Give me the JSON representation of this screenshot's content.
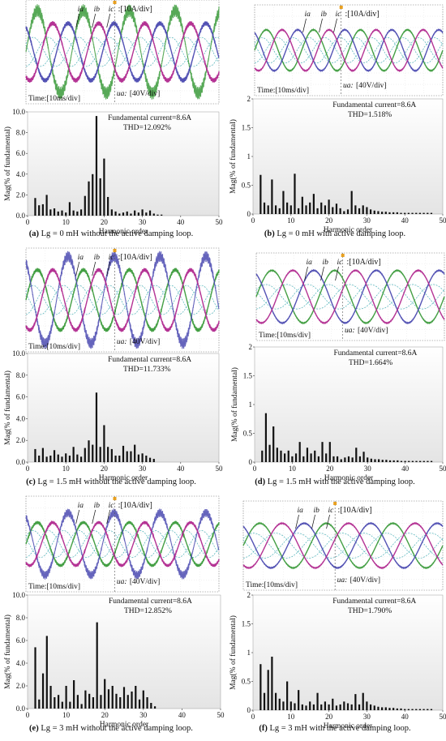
{
  "panels": [
    {
      "id": "a",
      "caption_letter": "(a)",
      "caption_text": "Lg = 0 mH without the active damping loop.",
      "wave_labels": {
        "ia": "ia",
        "ib": "ib",
        "ic": "ic",
        "current_scale": ":[10A/div]",
        "voltage_label": "ua:",
        "voltage_scale": "[40V/div]",
        "time_label": "Time:[10ms/div]"
      },
      "wave": {
        "current_amp": 0.55,
        "voltage_amp": 0.28,
        "cycles": 4.2,
        "ripple": 0.35,
        "highlight_phase": "green"
      },
      "chart_data": {
        "type": "bar",
        "ylabel": "Mag(% of fundamental)",
        "xlabel": "Harmonic order",
        "ylim": [
          0,
          10
        ],
        "yticks": [
          "0.0",
          "2.0",
          "4.0",
          "6.0",
          "8.0",
          "10.0"
        ],
        "xlim": [
          0,
          50
        ],
        "xticks": [
          "0",
          "10",
          "20",
          "30",
          "40",
          "50"
        ],
        "annotation_fundamental": "Fundamental current=8.6A",
        "annotation_thd": "THD=12.092%",
        "x": [
          2,
          3,
          4,
          5,
          6,
          7,
          8,
          9,
          10,
          11,
          12,
          13,
          14,
          15,
          16,
          17,
          18,
          19,
          20,
          21,
          22,
          23,
          24,
          25,
          26,
          27,
          28,
          29,
          30,
          31,
          32,
          33,
          34,
          35
        ],
        "values": [
          1.7,
          1.0,
          1.1,
          2.0,
          0.6,
          0.7,
          0.4,
          0.5,
          0.3,
          1.3,
          0.5,
          0.4,
          0.6,
          1.9,
          3.3,
          4.0,
          9.6,
          3.6,
          5.5,
          1.8,
          0.6,
          0.4,
          0.2,
          0.3,
          0.4,
          0.2,
          0.5,
          0.3,
          0.6,
          0.3,
          0.5,
          0.2,
          0.1,
          0.1
        ]
      }
    },
    {
      "id": "b",
      "caption_letter": "(b)",
      "caption_text": "Lg = 0 mH with active damping loop.",
      "wave_labels": {
        "ia": "ia",
        "ib": "ib",
        "ic": "ic",
        "current_scale": ":[10A/div]",
        "voltage_label": "ua:",
        "voltage_scale": "[40V/div]",
        "time_label": "Time:[10ms/div]"
      },
      "wave": {
        "current_amp": 0.45,
        "voltage_amp": 0.28,
        "cycles": 4.0,
        "ripple": 0.04,
        "highlight_phase": "none"
      },
      "chart_data": {
        "type": "bar",
        "ylabel": "Mag(% of fundamental)",
        "xlabel": "Harmonic order",
        "ylim": [
          0,
          2
        ],
        "yticks": [
          "0",
          "0.5",
          "1",
          "1.5",
          "2"
        ],
        "xlim": [
          0,
          50
        ],
        "xticks": [
          "0",
          "10",
          "20",
          "30",
          "40",
          "50"
        ],
        "annotation_fundamental": "Fundamental current=8.6A",
        "annotation_thd": "THD=1.518%",
        "x": [
          2,
          3,
          4,
          5,
          6,
          7,
          8,
          9,
          10,
          11,
          12,
          13,
          14,
          15,
          16,
          17,
          18,
          19,
          20,
          21,
          22,
          23,
          24,
          25,
          26,
          27,
          28,
          29,
          30,
          31,
          32,
          33,
          34,
          35,
          36,
          37,
          38,
          39,
          40,
          41,
          42,
          43,
          44,
          45,
          46,
          47
        ],
        "values": [
          0.68,
          0.2,
          0.15,
          0.6,
          0.15,
          0.1,
          0.4,
          0.2,
          0.15,
          0.7,
          0.1,
          0.3,
          0.15,
          0.2,
          0.35,
          0.1,
          0.2,
          0.15,
          0.25,
          0.12,
          0.18,
          0.1,
          0.05,
          0.08,
          0.4,
          0.15,
          0.1,
          0.15,
          0.12,
          0.08,
          0.06,
          0.05,
          0.04,
          0.04,
          0.03,
          0.03,
          0.03,
          0.02,
          0.02,
          0.02,
          0.02,
          0.02,
          0.02,
          0.02,
          0.02,
          0.02
        ]
      }
    },
    {
      "id": "c",
      "caption_letter": "(c)",
      "caption_text": "Lg = 1.5 mH without the active damping loop.",
      "wave_labels": {
        "ia": "ia",
        "ib": "ib",
        "ic": "ic",
        "current_scale": ":[10A/div]",
        "voltage_label": "ua:",
        "voltage_scale": "[40V/div]",
        "time_label": "Time:[10ms/div]"
      },
      "wave": {
        "current_amp": 0.58,
        "voltage_amp": 0.28,
        "cycles": 4.2,
        "ripple": 0.3,
        "highlight_phase": "blue"
      },
      "chart_data": {
        "type": "bar",
        "ylabel": "Mag(% of fundamental)",
        "xlabel": "Harmonic order",
        "ylim": [
          0,
          10
        ],
        "yticks": [
          "0.0",
          "2.0",
          "4.0",
          "6.0",
          "8.0",
          "10.0"
        ],
        "xlim": [
          0,
          50
        ],
        "xticks": [
          "0",
          "10",
          "20",
          "30",
          "40",
          "50"
        ],
        "annotation_fundamental": "Fundamental current=8.6A",
        "annotation_thd": "THD=11.733%",
        "x": [
          2,
          3,
          4,
          5,
          6,
          7,
          8,
          9,
          10,
          11,
          12,
          13,
          14,
          15,
          16,
          17,
          18,
          19,
          20,
          21,
          22,
          23,
          24,
          25,
          26,
          27,
          28,
          29,
          30,
          31,
          32,
          33
        ],
        "values": [
          1.2,
          0.6,
          1.3,
          0.5,
          0.6,
          1.1,
          0.7,
          0.5,
          0.8,
          0.6,
          1.4,
          0.7,
          0.5,
          1.3,
          2.0,
          1.6,
          6.4,
          1.4,
          3.4,
          1.4,
          1.2,
          0.6,
          0.6,
          1.5,
          1.0,
          1.0,
          1.6,
          0.7,
          0.8,
          0.6,
          0.4,
          0.3
        ]
      }
    },
    {
      "id": "d",
      "caption_letter": "(d)",
      "caption_text": "Lg = 1.5 mH with the active damping loop.",
      "wave_labels": {
        "ia": "ia",
        "ib": "ib",
        "ic": "ic",
        "current_scale": ":[10A/div]",
        "voltage_label": "ua:",
        "voltage_scale": "[40V/div]",
        "time_label": "Time:[10ms/div]"
      },
      "wave": {
        "current_amp": 0.6,
        "voltage_amp": 0.28,
        "cycles": 3.0,
        "ripple": 0.04,
        "highlight_phase": "none"
      },
      "chart_data": {
        "type": "bar",
        "ylabel": "Mag(% of fundamental)",
        "xlabel": "Harmonic order",
        "ylim": [
          0,
          2
        ],
        "yticks": [
          "0",
          "0.5",
          "1",
          "1.5",
          "2"
        ],
        "xlim": [
          0,
          50
        ],
        "xticks": [
          "0",
          "10",
          "20",
          "30",
          "40",
          "50"
        ],
        "annotation_fundamental": "Fundamental current=8.6A",
        "annotation_thd": "THD=1.664%",
        "x": [
          2,
          3,
          4,
          5,
          6,
          7,
          8,
          9,
          10,
          11,
          12,
          13,
          14,
          15,
          16,
          17,
          18,
          19,
          20,
          21,
          22,
          23,
          24,
          25,
          26,
          27,
          28,
          29,
          30,
          31,
          32,
          33,
          34,
          35,
          36,
          37,
          38,
          39,
          40,
          41,
          42,
          43,
          44,
          45,
          46,
          47
        ],
        "values": [
          0.2,
          0.85,
          0.3,
          0.62,
          0.25,
          0.2,
          0.15,
          0.2,
          0.1,
          0.15,
          0.35,
          0.1,
          0.25,
          0.15,
          0.2,
          0.1,
          0.35,
          0.15,
          0.35,
          0.1,
          0.1,
          0.05,
          0.08,
          0.1,
          0.08,
          0.25,
          0.1,
          0.18,
          0.08,
          0.06,
          0.05,
          0.05,
          0.04,
          0.04,
          0.03,
          0.03,
          0.03,
          0.02,
          0.02,
          0.02,
          0.02,
          0.02,
          0.02,
          0.02,
          0.02,
          0.02
        ]
      }
    },
    {
      "id": "e",
      "caption_letter": "(e)",
      "caption_text": "Lg = 3 mH without the active damping loop.",
      "wave_labels": {
        "ia": "ia",
        "ib": "ib",
        "ic": "ic",
        "current_scale": ":[10A/div]",
        "voltage_label": "ua:",
        "voltage_scale": "[40V/div]",
        "time_label": "Time:[10ms/div]"
      },
      "wave": {
        "current_amp": 0.45,
        "voltage_amp": 0.28,
        "cycles": 4.2,
        "ripple": 0.25,
        "highlight_phase": "blue"
      },
      "chart_data": {
        "type": "bar",
        "ylabel": "Mag(% of fundamental)",
        "xlabel": "Harmonic order",
        "ylim": [
          0,
          10
        ],
        "yticks": [
          "0.0",
          "2.0",
          "4.0",
          "6.0",
          "8.0",
          "10.0"
        ],
        "xlim": [
          0,
          50
        ],
        "xticks": [
          "0",
          "10",
          "20",
          "30",
          "40",
          "50"
        ],
        "annotation_fundamental": "Fundamental current=8.6A",
        "annotation_thd": "THD=12.852%",
        "x": [
          2,
          3,
          4,
          5,
          6,
          7,
          8,
          9,
          10,
          11,
          12,
          13,
          14,
          15,
          16,
          17,
          18,
          19,
          20,
          21,
          22,
          23,
          24,
          25,
          26,
          27,
          28,
          29,
          30,
          31,
          32,
          33
        ],
        "values": [
          5.4,
          0.8,
          3.1,
          6.4,
          2.0,
          1.0,
          1.2,
          0.6,
          2.0,
          0.6,
          2.5,
          1.2,
          0.4,
          1.6,
          1.3,
          1.0,
          7.6,
          1.2,
          2.6,
          1.7,
          2.0,
          1.3,
          1.0,
          1.9,
          1.2,
          1.5,
          2.0,
          0.8,
          1.6,
          1.0,
          0.5,
          0.2
        ]
      }
    },
    {
      "id": "f",
      "caption_letter": "(f)",
      "caption_text": "Lg = 3 mH with the active damping loop.",
      "wave_labels": {
        "ia": "ia",
        "ib": "ib",
        "ic": "ic",
        "current_scale": ":[10A/div]",
        "voltage_label": "ua:",
        "voltage_scale": "[40V/div]",
        "time_label": "Time:[10ms/div]"
      },
      "wave": {
        "current_amp": 0.5,
        "voltage_amp": 0.28,
        "cycles": 3.0,
        "ripple": 0.04,
        "highlight_phase": "none"
      },
      "chart_data": {
        "type": "bar",
        "ylabel": "Mag(% of fundamental)",
        "xlabel": "Harmonic order",
        "ylim": [
          0,
          2
        ],
        "yticks": [
          "0",
          "0.5",
          "1",
          "1.5",
          "2"
        ],
        "xlim": [
          0,
          50
        ],
        "xticks": [
          "0",
          "10",
          "20",
          "30",
          "40",
          "50"
        ],
        "annotation_fundamental": "Fundamental current=8.6A",
        "annotation_thd": "THD=1.790%",
        "x": [
          2,
          3,
          4,
          5,
          6,
          7,
          8,
          9,
          10,
          11,
          12,
          13,
          14,
          15,
          16,
          17,
          18,
          19,
          20,
          21,
          22,
          23,
          24,
          25,
          26,
          27,
          28,
          29,
          30,
          31,
          32,
          33,
          34,
          35,
          36,
          37,
          38,
          39,
          40,
          41,
          42,
          43,
          44,
          45,
          46,
          47
        ],
        "values": [
          0.8,
          0.3,
          0.7,
          0.93,
          0.3,
          0.2,
          0.15,
          0.5,
          0.15,
          0.12,
          0.35,
          0.1,
          0.08,
          0.15,
          0.1,
          0.3,
          0.1,
          0.15,
          0.1,
          0.2,
          0.08,
          0.1,
          0.15,
          0.12,
          0.1,
          0.28,
          0.1,
          0.3,
          0.15,
          0.1,
          0.08,
          0.06,
          0.05,
          0.05,
          0.04,
          0.04,
          0.03,
          0.03,
          0.02,
          0.02,
          0.02,
          0.02,
          0.02,
          0.02,
          0.02,
          0.02
        ]
      }
    }
  ],
  "colors": {
    "phase_a": "#3a9a3a",
    "phase_b": "#4a49b0",
    "phase_c": "#b0288e",
    "voltage": "#38a8b0",
    "bar": "#111111",
    "plot_bg_top": "#ffffff",
    "plot_bg_bottom": "#e4e4e4"
  }
}
